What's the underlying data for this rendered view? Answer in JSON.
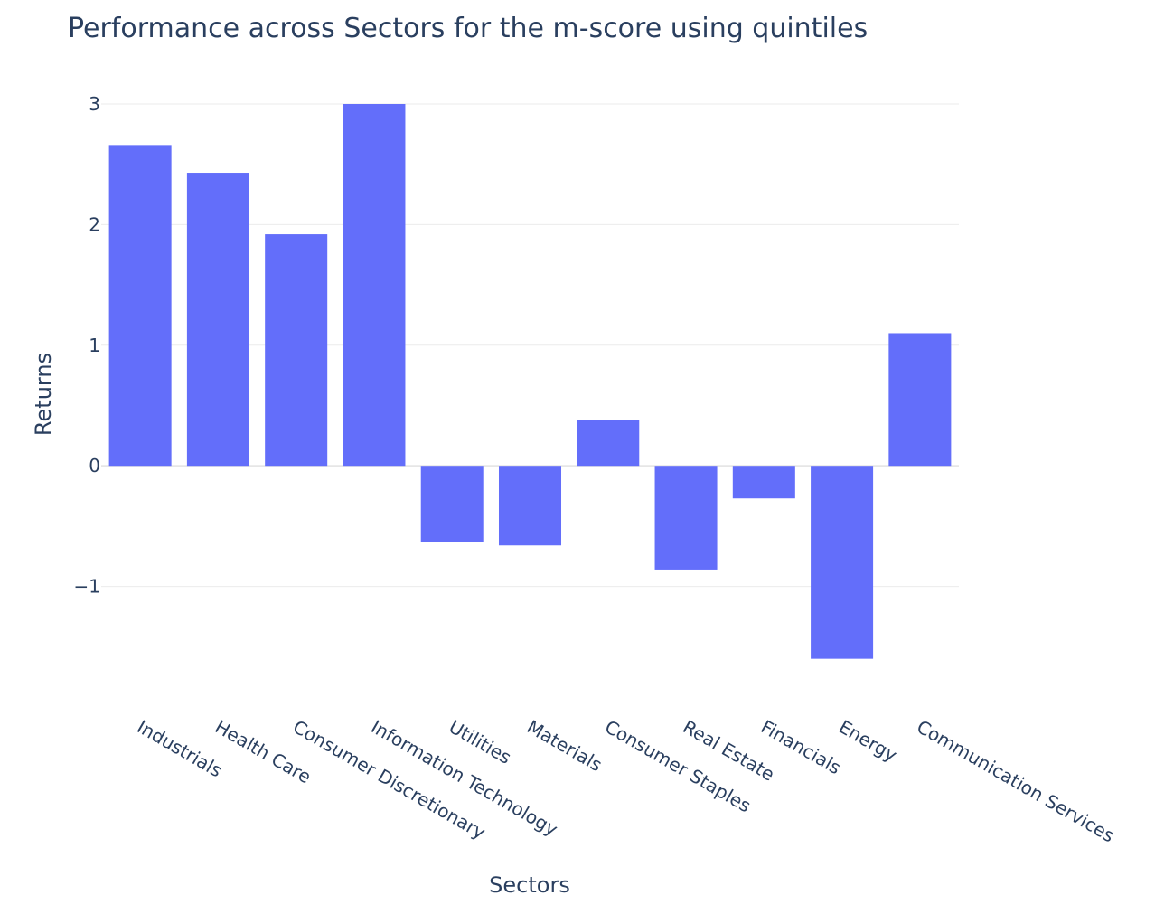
{
  "chart_data": {
    "type": "bar",
    "title": "Performance across Sectors for the m-score using quintiles",
    "xlabel": "Sectors",
    "ylabel": "Returns",
    "categories": [
      "Industrials",
      "Health Care",
      "Consumer Discretionary",
      "Information Technology",
      "Utilities",
      "Materials",
      "Consumer Staples",
      "Real Estate",
      "Financials",
      "Energy",
      "Communication Services"
    ],
    "values": [
      2.66,
      2.43,
      1.92,
      3.0,
      -0.63,
      -0.66,
      0.38,
      -0.86,
      -0.27,
      -1.6,
      1.1
    ],
    "ylim": [
      -1.82,
      3.0
    ],
    "yticks": [
      -1,
      0,
      1,
      2,
      3
    ],
    "ytick_labels": [
      "−1",
      "0",
      "1",
      "2",
      "3"
    ],
    "grid": true,
    "bar_color": "#636efa",
    "grid_color": "#ebebeb",
    "text_color": "#2a3f5f"
  }
}
